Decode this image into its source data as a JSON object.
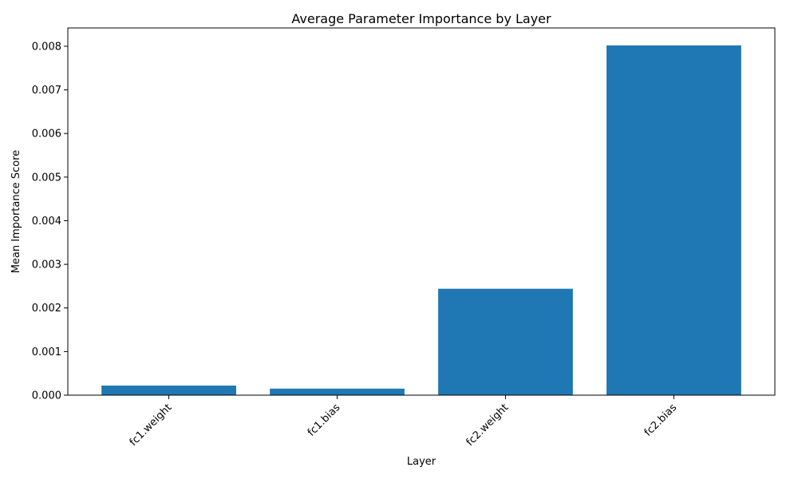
{
  "chart_data": {
    "type": "bar",
    "title": "Average Parameter Importance by Layer",
    "xlabel": "Layer",
    "ylabel": "Mean Importance Score",
    "categories": [
      "fc1.weight",
      "fc1.bias",
      "fc2.weight",
      "fc2.bias"
    ],
    "values": [
      0.00022,
      0.00015,
      0.00244,
      0.00802
    ],
    "ylim": [
      0,
      0.00842
    ],
    "yticks": [
      0,
      0.001,
      0.002,
      0.003,
      0.004,
      0.005,
      0.006,
      0.007,
      0.008
    ],
    "ytick_labels": [
      "0.000",
      "0.001",
      "0.002",
      "0.003",
      "0.004",
      "0.005",
      "0.006",
      "0.007",
      "0.008"
    ],
    "grid": false,
    "bar_color": "#1f77b4"
  }
}
